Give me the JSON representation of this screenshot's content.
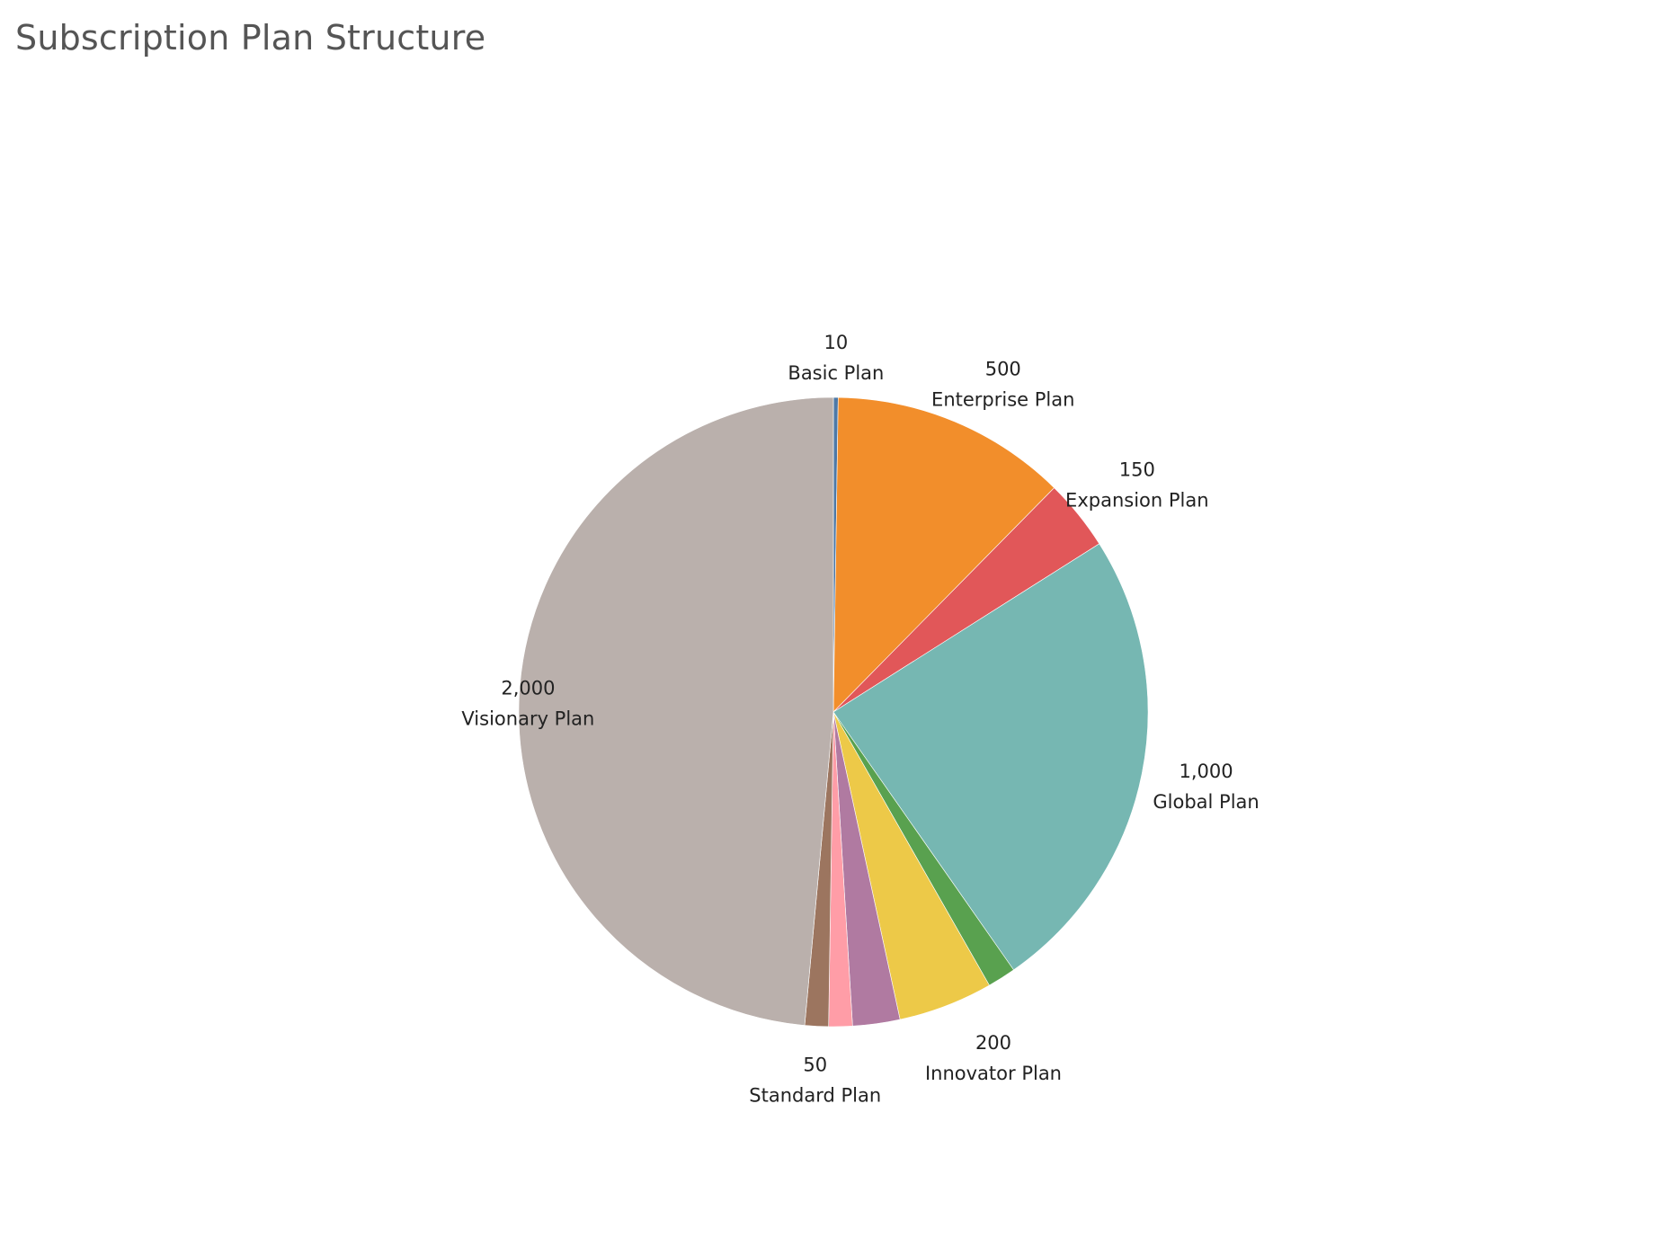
{
  "chart_data": {
    "type": "pie",
    "title": "Subscription Plan Structure",
    "start_angle_deg": 0,
    "direction": "clockwise",
    "slices": [
      {
        "label": "Basic Plan",
        "value": 10,
        "value_text": "10",
        "color": "#4e79a7",
        "labeled": true
      },
      {
        "label": "Enterprise Plan",
        "value": 500,
        "value_text": "500",
        "color": "#f28e2b",
        "labeled": true
      },
      {
        "label": "Expansion Plan",
        "value": 150,
        "value_text": "150",
        "color": "#e15759",
        "labeled": true
      },
      {
        "label": "Global Plan",
        "value": 1000,
        "value_text": "1,000",
        "color": "#76b7b2",
        "labeled": true
      },
      {
        "label": "",
        "value": 60,
        "value_text": "",
        "color": "#59a14f",
        "labeled": false
      },
      {
        "label": "Innovator Plan",
        "value": 200,
        "value_text": "200",
        "color": "#edc948",
        "labeled": true
      },
      {
        "label": "",
        "value": 100,
        "value_text": "",
        "color": "#b07aa1",
        "labeled": false
      },
      {
        "label": "",
        "value": 50,
        "value_text": "",
        "color": "#ff9da7",
        "labeled": false
      },
      {
        "label": "Standard Plan",
        "value": 50,
        "value_text": "50",
        "color": "#9c755f",
        "labeled": true
      },
      {
        "label": "Visionary Plan",
        "value": 2000,
        "value_text": "2,000",
        "color": "#bab0ac",
        "labeled": true
      }
    ]
  }
}
